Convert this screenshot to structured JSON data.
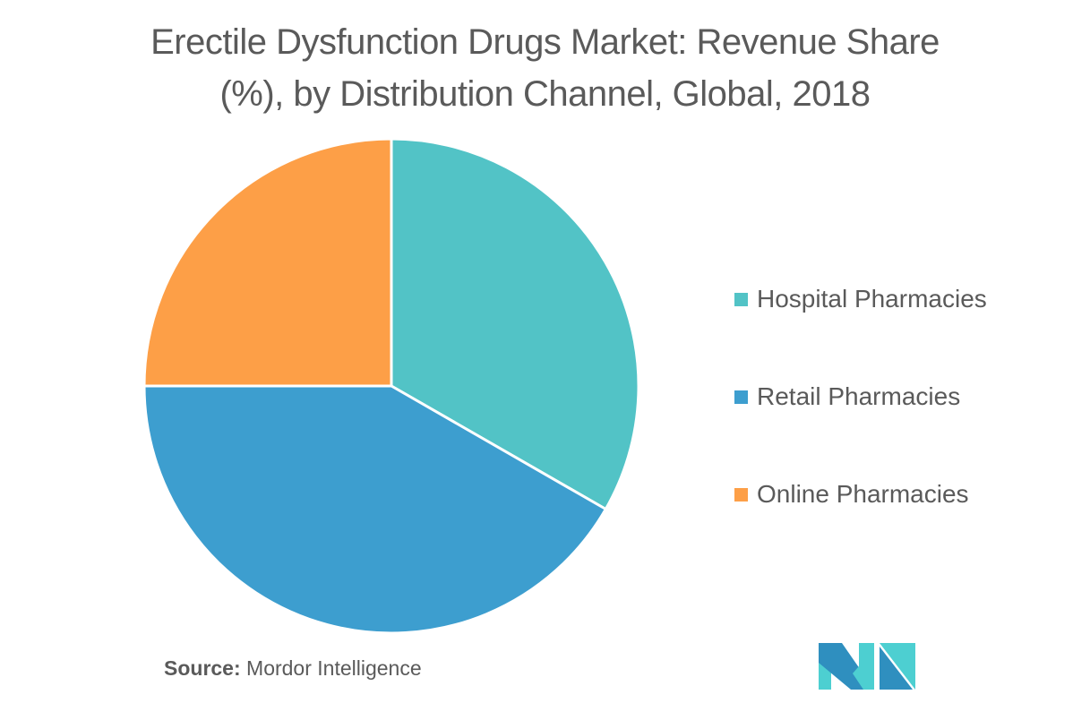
{
  "title_line1": "Erectile Dysfunction Drugs Market: Revenue Share",
  "title_line2": "(%), by Distribution Channel, Global, 2018",
  "legend": [
    {
      "label": "Hospital Pharmacies",
      "color": "#52c3c6"
    },
    {
      "label": "Retail Pharmacies",
      "color": "#3d9ecf"
    },
    {
      "label": "Online Pharmacies",
      "color": "#fd9f47"
    }
  ],
  "source": {
    "prefix": "Source:",
    "text": " Mordor Intelligence"
  },
  "logo": {
    "name": "Mordor Intelligence logo",
    "colors": [
      "#2f8fbf",
      "#4dcfd1"
    ]
  },
  "chart_data": {
    "type": "pie",
    "title": "Erectile Dysfunction Drugs Market: Revenue Share (%), by Distribution Channel, Global, 2018",
    "categories": [
      "Hospital Pharmacies",
      "Retail Pharmacies",
      "Online Pharmacies"
    ],
    "values": [
      33.3,
      41.7,
      25.0
    ],
    "colors": [
      "#52c3c6",
      "#3d9ecf",
      "#fd9f47"
    ],
    "start_angle": "12 o'clock, clockwise",
    "legend_position": "right",
    "data_labels": false
  }
}
